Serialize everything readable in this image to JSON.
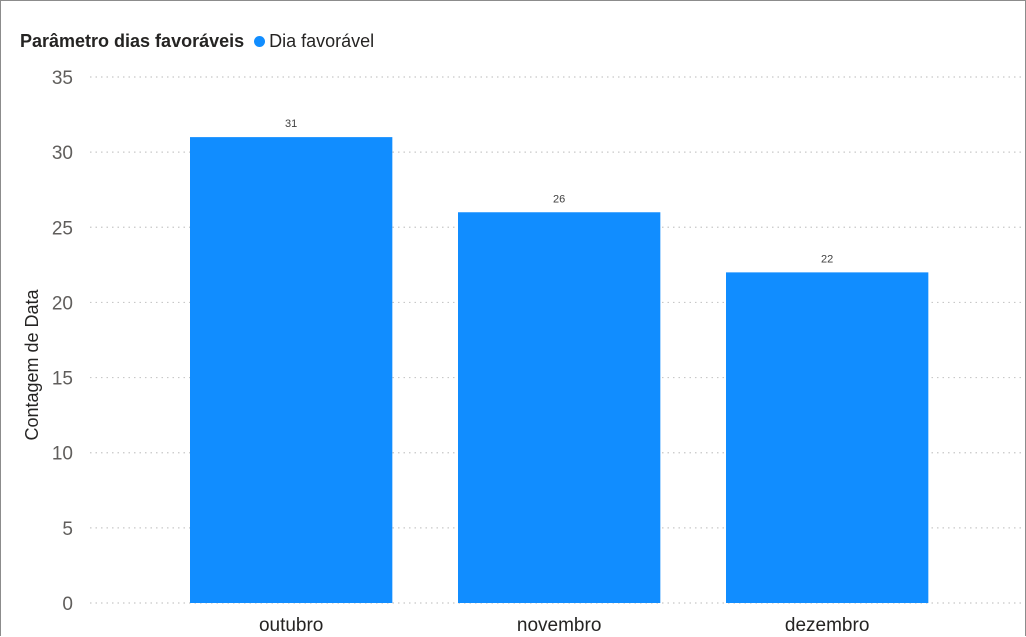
{
  "colors": {
    "bar": "#118DFF",
    "legend_dot": "#118DFF"
  },
  "legend": {
    "title": "Parâmetro dias favoráveis",
    "items": [
      {
        "label": "Dia favorável"
      }
    ]
  },
  "chart_data": {
    "type": "bar",
    "title": "",
    "xlabel": "",
    "ylabel": "Contagem de Data",
    "categories": [
      "outubro",
      "novembro",
      "dezembro"
    ],
    "series": [
      {
        "name": "Dia favorável",
        "values": [
          31,
          26,
          22
        ]
      }
    ],
    "ylim": [
      0,
      35
    ],
    "yticks": [
      0,
      5,
      10,
      15,
      20,
      25,
      30,
      35
    ],
    "data_labels": true,
    "grid": "horizontal-dotted",
    "legend_position": "top-left"
  }
}
